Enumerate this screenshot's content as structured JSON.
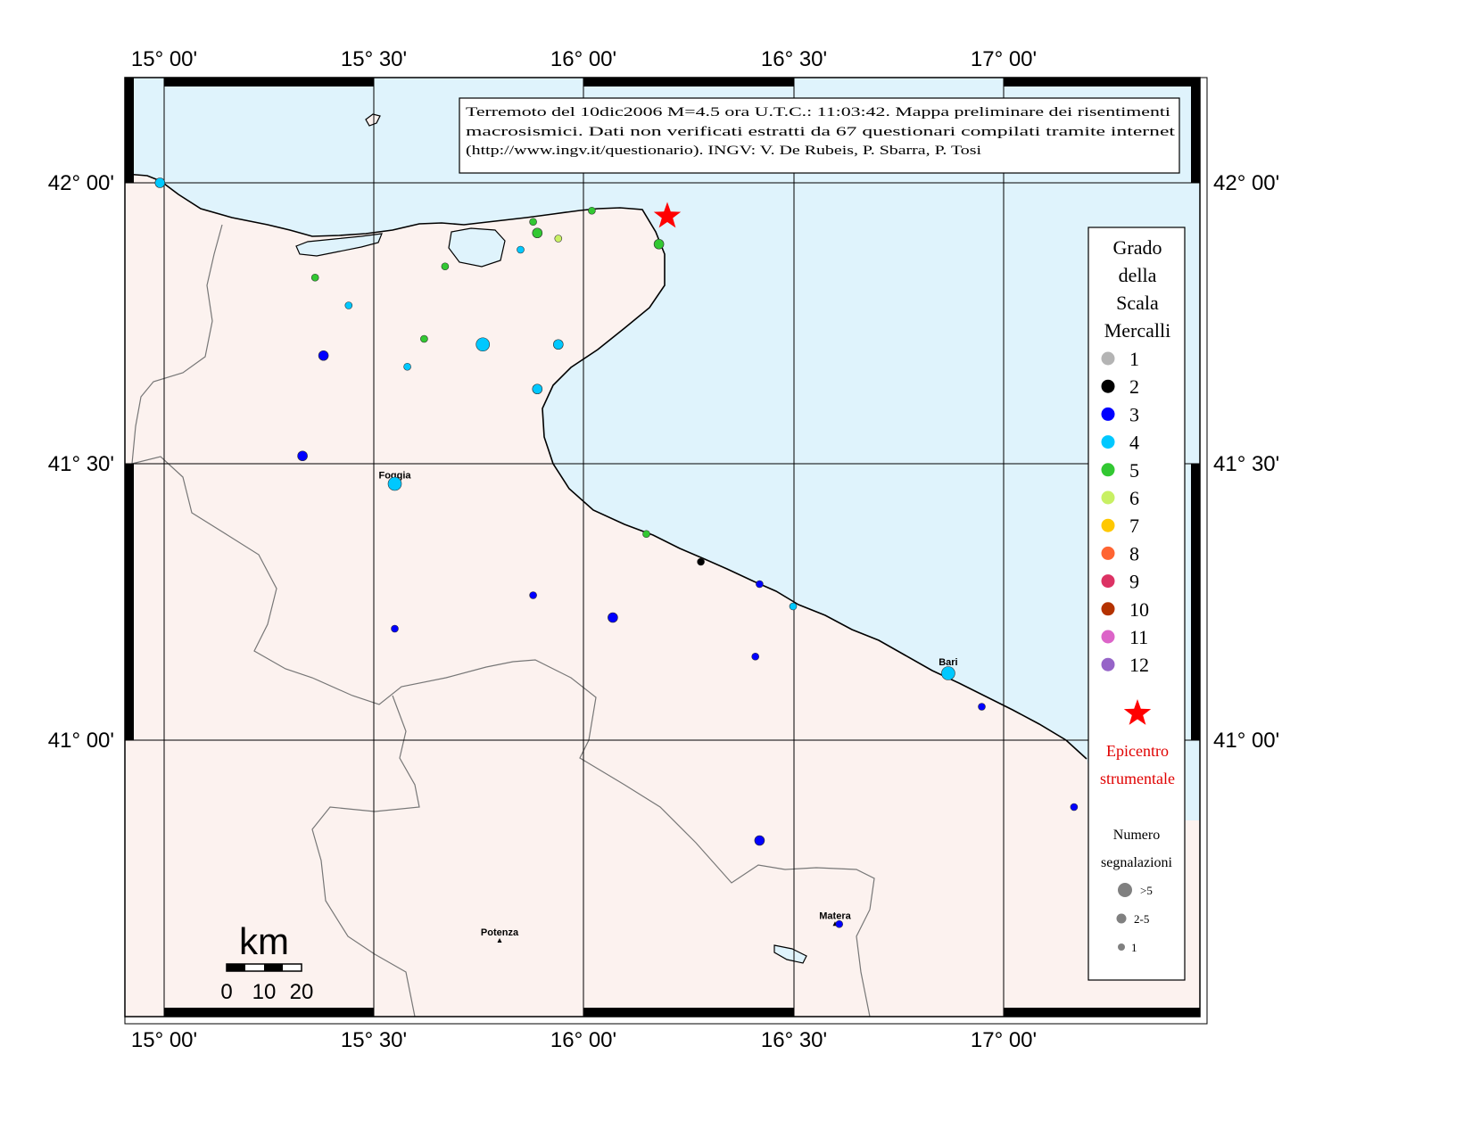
{
  "map": {
    "lon_labels": [
      "15° 00'",
      "15° 30'",
      "16° 00'",
      "16° 30'",
      "17° 00'"
    ],
    "lat_labels": [
      "42° 00'",
      "41° 30'",
      "41° 00'"
    ],
    "info_lines": [
      "Terremoto del 10dic2006 M=4.5 ora U.T.C.: 11:03:42.  Mappa preliminare dei risentimenti",
      "macrosismici.  Dati non verificati estratti da 67 questionari compilati tramite internet",
      "(http://www.ingv.it/questionario).  INGV: V.  De Rubeis, P.  Sbarra, P.  Tosi"
    ],
    "places": [
      {
        "name": "Foggia",
        "lon": 15.55,
        "lat": 41.46
      },
      {
        "name": "Bari",
        "lon": 16.87,
        "lat": 41.125
      },
      {
        "name": "Potenza",
        "lon": 15.8,
        "lat": 40.64
      },
      {
        "name": "Matera",
        "lon": 16.6,
        "lat": 40.67
      }
    ],
    "epicenter": {
      "lon": 16.2,
      "lat": 41.94
    },
    "points": [
      {
        "lon": 14.99,
        "lat": 42.0,
        "i": 4,
        "n": 2
      },
      {
        "lon": 15.36,
        "lat": 41.83,
        "i": 5,
        "n": 1
      },
      {
        "lon": 15.44,
        "lat": 41.78,
        "i": 4,
        "n": 1
      },
      {
        "lon": 15.38,
        "lat": 41.69,
        "i": 3,
        "n": 2
      },
      {
        "lon": 15.58,
        "lat": 41.67,
        "i": 4,
        "n": 1
      },
      {
        "lon": 15.62,
        "lat": 41.72,
        "i": 5,
        "n": 1
      },
      {
        "lon": 15.67,
        "lat": 41.85,
        "i": 5,
        "n": 1
      },
      {
        "lon": 15.76,
        "lat": 41.71,
        "i": 4,
        "n": 3
      },
      {
        "lon": 15.85,
        "lat": 41.88,
        "i": 4,
        "n": 1
      },
      {
        "lon": 15.88,
        "lat": 41.93,
        "i": 5,
        "n": 1
      },
      {
        "lon": 15.89,
        "lat": 41.91,
        "i": 5,
        "n": 2
      },
      {
        "lon": 15.94,
        "lat": 41.9,
        "i": 6,
        "n": 1
      },
      {
        "lon": 16.02,
        "lat": 41.95,
        "i": 5,
        "n": 1
      },
      {
        "lon": 16.18,
        "lat": 41.89,
        "i": 5,
        "n": 2
      },
      {
        "lon": 15.94,
        "lat": 41.71,
        "i": 4,
        "n": 2
      },
      {
        "lon": 15.89,
        "lat": 41.63,
        "i": 4,
        "n": 2
      },
      {
        "lon": 15.33,
        "lat": 41.51,
        "i": 3,
        "n": 2
      },
      {
        "lon": 15.55,
        "lat": 41.46,
        "i": 4,
        "n": 3
      },
      {
        "lon": 16.15,
        "lat": 41.37,
        "i": 5,
        "n": 1
      },
      {
        "lon": 16.28,
        "lat": 41.32,
        "i": 2,
        "n": 1
      },
      {
        "lon": 16.42,
        "lat": 41.28,
        "i": 3,
        "n": 1
      },
      {
        "lon": 16.5,
        "lat": 41.24,
        "i": 4,
        "n": 1
      },
      {
        "lon": 15.88,
        "lat": 41.26,
        "i": 3,
        "n": 1
      },
      {
        "lon": 16.07,
        "lat": 41.22,
        "i": 3,
        "n": 2
      },
      {
        "lon": 15.55,
        "lat": 41.2,
        "i": 3,
        "n": 1
      },
      {
        "lon": 16.41,
        "lat": 41.15,
        "i": 3,
        "n": 1
      },
      {
        "lon": 16.87,
        "lat": 41.12,
        "i": 4,
        "n": 3
      },
      {
        "lon": 16.95,
        "lat": 41.06,
        "i": 3,
        "n": 1
      },
      {
        "lon": 17.17,
        "lat": 40.88,
        "i": 3,
        "n": 1
      },
      {
        "lon": 16.42,
        "lat": 40.82,
        "i": 3,
        "n": 2
      },
      {
        "lon": 16.61,
        "lat": 40.67,
        "i": 3,
        "n": 1
      }
    ]
  },
  "legend": {
    "title_lines": [
      "Grado",
      "della",
      "Scala",
      "Mercalli"
    ],
    "levels": [
      {
        "label": "1",
        "color": "#b4b4b4"
      },
      {
        "label": "2",
        "color": "#000000"
      },
      {
        "label": "3",
        "color": "#0000ff"
      },
      {
        "label": "4",
        "color": "#00c8ff"
      },
      {
        "label": "5",
        "color": "#32c832"
      },
      {
        "label": "6",
        "color": "#c8f064"
      },
      {
        "label": "7",
        "color": "#ffc800"
      },
      {
        "label": "8",
        "color": "#ff6432"
      },
      {
        "label": "9",
        "color": "#dc3264"
      },
      {
        "label": "10",
        "color": "#b43200"
      },
      {
        "label": "11",
        "color": "#dc64c8"
      },
      {
        "label": "12",
        "color": "#9664c8"
      }
    ],
    "epicentro_lines": [
      "Epicentro",
      "strumentale"
    ],
    "numero_lines": [
      "Numero",
      "segnalazioni"
    ],
    "size_labels": [
      ">5",
      "2-5",
      "1"
    ]
  },
  "scale": {
    "unit": "km",
    "ticks": [
      "0",
      "10",
      "20"
    ]
  },
  "colors": {
    "sea": "#dff3fc",
    "land": "#fcf2ef",
    "epicenter": "#ff0000"
  }
}
